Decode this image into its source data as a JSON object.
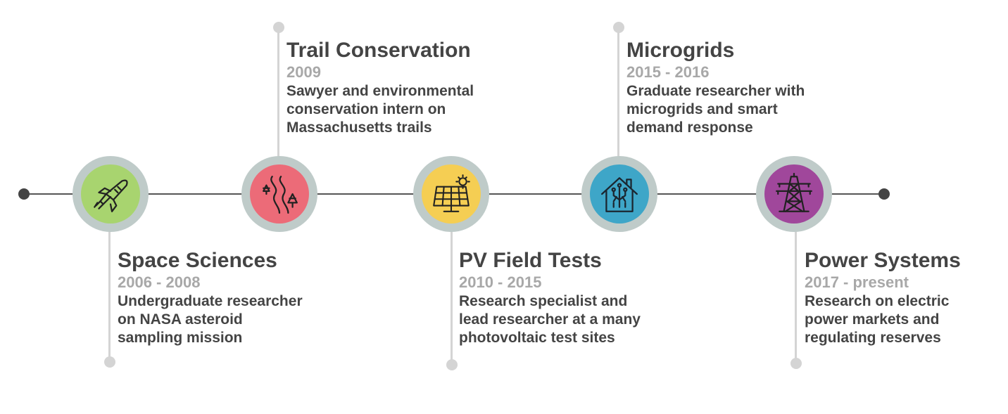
{
  "timeline": {
    "events": [
      {
        "title": "Space Sciences",
        "years": "2006 - 2008",
        "desc": [
          "Undergraduate researcher",
          "on NASA asteroid",
          "sampling mission"
        ],
        "icon": "rocket-icon",
        "color": "#a8d46f"
      },
      {
        "title": "Trail Conservation",
        "years": "2009",
        "desc": [
          "Sawyer and environmental",
          "conservation intern on",
          "Massachusetts trails"
        ],
        "icon": "trail-trees-icon",
        "color": "#ec6b78"
      },
      {
        "title": "PV Field Tests",
        "years": "2010 - 2015",
        "desc": [
          "Research specialist and",
          "lead researcher at a many",
          "photovoltaic test sites"
        ],
        "icon": "solar-panel-icon",
        "color": "#f5ce53"
      },
      {
        "title": "Microgrids",
        "years": "2015 - 2016",
        "desc": [
          "Graduate researcher with",
          "microgrids and smart",
          "demand response"
        ],
        "icon": "smart-house-icon",
        "color": "#3ea6c8"
      },
      {
        "title": "Power Systems",
        "years": "2017 - present",
        "desc": [
          "Research on electric",
          "power markets and",
          "regulating reserves"
        ],
        "icon": "transmission-tower-icon",
        "color": "#a0479b"
      }
    ]
  }
}
